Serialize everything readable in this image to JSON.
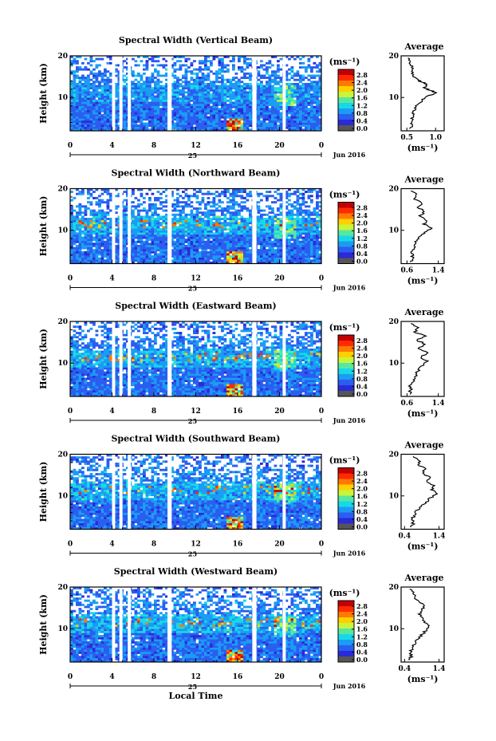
{
  "figure": {
    "date_label": "Jun 2016",
    "day_label": "25",
    "local_time_label": "Local Time",
    "ylabel": "Height (km)",
    "colorbar_unit": "(ms⁻¹)",
    "average_title": "Average",
    "average_unit": "(ms⁻¹)",
    "colorbar_ticks": [
      "2.8",
      "2.4",
      "2.0",
      "1.6",
      "1.2",
      "0.8",
      "0.4",
      "0.0"
    ],
    "colorbar_colors": [
      "#c40000",
      "#ff2a00",
      "#ff7a00",
      "#ffd000",
      "#c8f53a",
      "#57e8a0",
      "#18d8e8",
      "#1a9cf4",
      "#2a5df0",
      "#2a2ad8",
      "#555555"
    ]
  },
  "chart_data": [
    {
      "type": "heatmap",
      "title": "Spectral Width (Vertical Beam)",
      "x_ticks": [
        "0",
        "4",
        "8",
        "12",
        "16",
        "20",
        "0"
      ],
      "xlim": [
        0,
        24
      ],
      "y_ticks": [
        "20",
        "10"
      ],
      "ylim": [
        2,
        20
      ],
      "clim": [
        0,
        3.0
      ],
      "gaps_hours": [
        [
          4.0,
          4.3
        ],
        [
          4.7,
          5.0
        ],
        [
          5.5,
          5.8
        ],
        [
          9.3,
          9.7
        ],
        [
          17.4,
          17.8
        ],
        [
          20.3,
          20.6
        ]
      ],
      "average": {
        "type": "line",
        "x_ticks": [
          "0.5",
          "1.0"
        ],
        "xlim": [
          0.4,
          1.15
        ],
        "y_ticks": [
          "20",
          "10"
        ],
        "ylim": [
          2,
          20
        ],
        "points": [
          [
            0.55,
            2.5
          ],
          [
            0.6,
            3.5
          ],
          [
            0.58,
            4.5
          ],
          [
            0.62,
            5.5
          ],
          [
            0.6,
            6.5
          ],
          [
            0.65,
            7.5
          ],
          [
            0.7,
            8.5
          ],
          [
            0.78,
            9.5
          ],
          [
            0.9,
            10.5
          ],
          [
            1.0,
            11.0
          ],
          [
            0.95,
            11.5
          ],
          [
            0.85,
            12.0
          ],
          [
            0.8,
            12.5
          ],
          [
            0.85,
            13.0
          ],
          [
            0.8,
            13.5
          ],
          [
            0.72,
            14.0
          ],
          [
            0.65,
            14.5
          ],
          [
            0.6,
            15.5
          ],
          [
            0.58,
            16.5
          ],
          [
            0.6,
            17.5
          ],
          [
            0.55,
            18.5
          ],
          [
            0.52,
            19.5
          ]
        ]
      }
    },
    {
      "type": "heatmap",
      "title": "Spectral Width (Northward Beam)",
      "x_ticks": [
        "0",
        "4",
        "8",
        "12",
        "16",
        "20",
        "0"
      ],
      "xlim": [
        0,
        24
      ],
      "y_ticks": [
        "20",
        "10"
      ],
      "ylim": [
        2,
        20
      ],
      "clim": [
        0,
        3.0
      ],
      "gaps_hours": [
        [
          4.0,
          4.3
        ],
        [
          4.7,
          5.0
        ],
        [
          5.5,
          5.8
        ],
        [
          9.3,
          9.7
        ],
        [
          17.4,
          17.8
        ],
        [
          20.3,
          20.6
        ]
      ],
      "average": {
        "type": "line",
        "x_ticks": [
          "0.6",
          "1.4"
        ],
        "xlim": [
          0.45,
          1.55
        ],
        "y_ticks": [
          "20",
          "10"
        ],
        "ylim": [
          2,
          20
        ],
        "points": [
          [
            0.7,
            2.5
          ],
          [
            0.75,
            3.5
          ],
          [
            0.72,
            4.5
          ],
          [
            0.8,
            5.5
          ],
          [
            0.78,
            6.5
          ],
          [
            0.85,
            7.5
          ],
          [
            0.95,
            8.5
          ],
          [
            1.05,
            9.5
          ],
          [
            1.2,
            10.5
          ],
          [
            1.05,
            11.5
          ],
          [
            1.1,
            12.5
          ],
          [
            0.95,
            13.5
          ],
          [
            1.05,
            14.5
          ],
          [
            0.9,
            15.5
          ],
          [
            1.0,
            16.5
          ],
          [
            0.8,
            17.5
          ],
          [
            0.85,
            18.5
          ],
          [
            0.7,
            19.5
          ]
        ]
      }
    },
    {
      "type": "heatmap",
      "title": "Spectral Width (Eastward Beam)",
      "x_ticks": [
        "0",
        "4",
        "8",
        "12",
        "16",
        "20",
        "0"
      ],
      "xlim": [
        0,
        24
      ],
      "y_ticks": [
        "20",
        "10"
      ],
      "ylim": [
        2,
        20
      ],
      "clim": [
        0,
        3.0
      ],
      "gaps_hours": [
        [
          4.0,
          4.3
        ],
        [
          4.7,
          5.0
        ],
        [
          5.5,
          5.8
        ],
        [
          9.3,
          9.7
        ],
        [
          17.4,
          17.8
        ],
        [
          20.3,
          20.6
        ]
      ],
      "average": {
        "type": "line",
        "x_ticks": [
          "0.6",
          "1.4"
        ],
        "xlim": [
          0.45,
          1.55
        ],
        "y_ticks": [
          "20",
          "10"
        ],
        "ylim": [
          2,
          20
        ],
        "points": [
          [
            0.65,
            2.5
          ],
          [
            0.7,
            3.5
          ],
          [
            0.68,
            4.5
          ],
          [
            0.75,
            5.5
          ],
          [
            0.78,
            6.5
          ],
          [
            0.85,
            7.5
          ],
          [
            0.9,
            8.5
          ],
          [
            1.0,
            9.5
          ],
          [
            1.1,
            10.5
          ],
          [
            0.95,
            11.5
          ],
          [
            1.15,
            12.5
          ],
          [
            0.9,
            13.5
          ],
          [
            1.1,
            14.5
          ],
          [
            0.85,
            15.5
          ],
          [
            1.05,
            16.5
          ],
          [
            0.8,
            17.5
          ],
          [
            0.9,
            18.5
          ],
          [
            0.7,
            19.5
          ]
        ]
      }
    },
    {
      "type": "heatmap",
      "title": "Spectral Width (Southward Beam)",
      "x_ticks": [
        "0",
        "4",
        "8",
        "12",
        "16",
        "20",
        "0"
      ],
      "xlim": [
        0,
        24
      ],
      "y_ticks": [
        "20",
        "10"
      ],
      "ylim": [
        2,
        20
      ],
      "clim": [
        0,
        3.0
      ],
      "gaps_hours": [
        [
          4.0,
          4.3
        ],
        [
          4.7,
          5.0
        ],
        [
          5.5,
          5.8
        ],
        [
          9.3,
          9.7
        ],
        [
          17.4,
          17.8
        ],
        [
          20.3,
          20.6
        ]
      ],
      "average": {
        "type": "line",
        "x_ticks": [
          "0.4",
          "1.4"
        ],
        "xlim": [
          0.3,
          1.55
        ],
        "y_ticks": [
          "20",
          "10"
        ],
        "ylim": [
          2,
          20
        ],
        "points": [
          [
            0.6,
            2.5
          ],
          [
            0.65,
            3.5
          ],
          [
            0.62,
            4.5
          ],
          [
            0.7,
            5.5
          ],
          [
            0.75,
            6.5
          ],
          [
            0.9,
            7.5
          ],
          [
            1.05,
            8.5
          ],
          [
            1.15,
            9.5
          ],
          [
            1.3,
            10.5
          ],
          [
            1.2,
            11.5
          ],
          [
            1.25,
            12.5
          ],
          [
            1.05,
            13.5
          ],
          [
            1.1,
            14.5
          ],
          [
            0.95,
            15.5
          ],
          [
            1.0,
            16.5
          ],
          [
            0.8,
            17.5
          ],
          [
            0.85,
            18.5
          ],
          [
            0.65,
            19.5
          ]
        ]
      }
    },
    {
      "type": "heatmap",
      "title": "Spectral Width (Westward Beam)",
      "x_ticks": [
        "0",
        "4",
        "8",
        "12",
        "16",
        "20",
        "0"
      ],
      "xlim": [
        0,
        24
      ],
      "y_ticks": [
        "20",
        "10"
      ],
      "ylim": [
        2,
        20
      ],
      "clim": [
        0,
        3.0
      ],
      "gaps_hours": [
        [
          4.0,
          4.3
        ],
        [
          4.7,
          5.0
        ],
        [
          5.5,
          5.8
        ],
        [
          9.3,
          9.7
        ],
        [
          17.4,
          17.8
        ],
        [
          20.3,
          20.6
        ]
      ],
      "average": {
        "type": "line",
        "x_ticks": [
          "0.4",
          "1.4"
        ],
        "xlim": [
          0.3,
          1.55
        ],
        "y_ticks": [
          "20",
          "10"
        ],
        "ylim": [
          2,
          20
        ],
        "points": [
          [
            0.55,
            2.5
          ],
          [
            0.6,
            3.5
          ],
          [
            0.58,
            4.5
          ],
          [
            0.65,
            5.5
          ],
          [
            0.7,
            6.5
          ],
          [
            0.8,
            7.5
          ],
          [
            0.9,
            8.5
          ],
          [
            1.0,
            9.5
          ],
          [
            1.1,
            10.5
          ],
          [
            1.0,
            11.5
          ],
          [
            0.95,
            12.5
          ],
          [
            0.85,
            13.5
          ],
          [
            0.9,
            14.5
          ],
          [
            1.0,
            15.5
          ],
          [
            0.85,
            16.5
          ],
          [
            0.7,
            17.5
          ],
          [
            0.65,
            18.5
          ],
          [
            0.55,
            19.5
          ]
        ]
      }
    }
  ]
}
